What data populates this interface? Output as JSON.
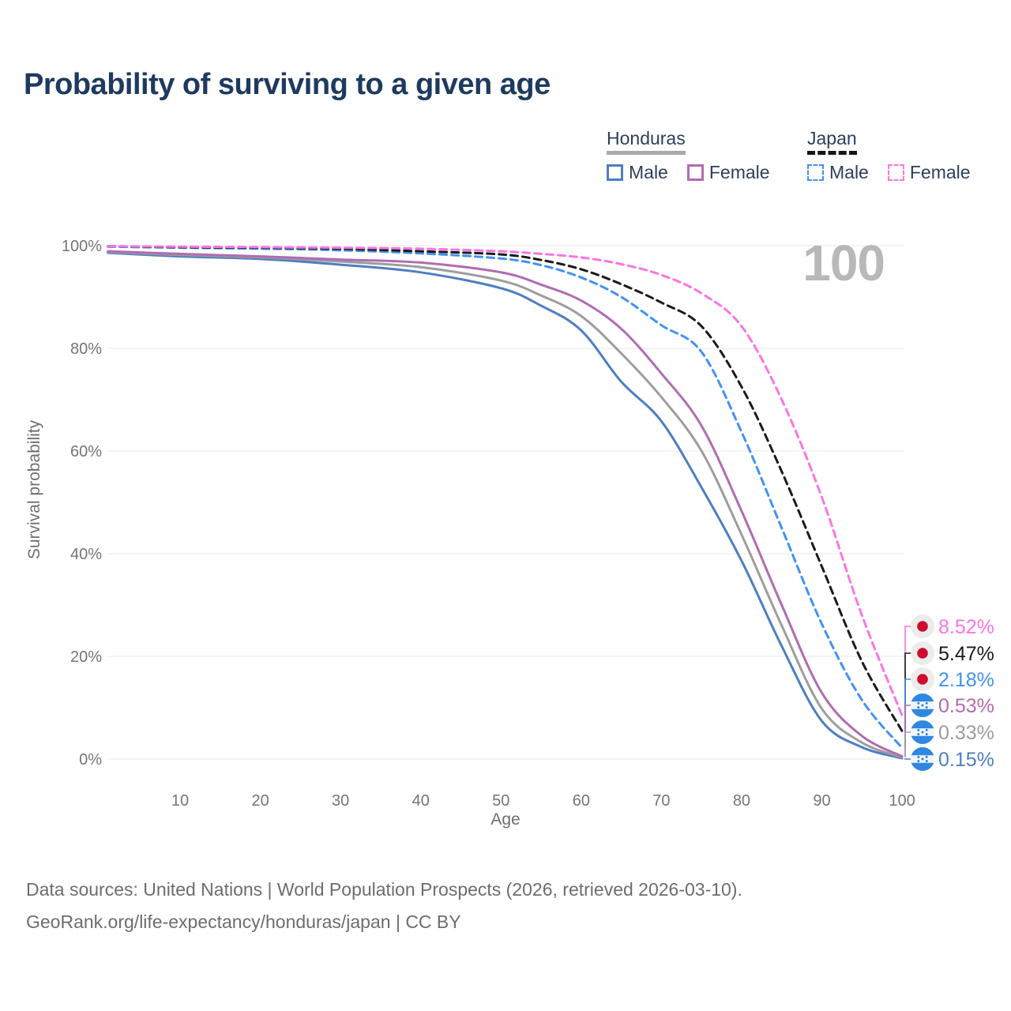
{
  "title": "Probability of surviving to a given age",
  "legend": {
    "honduras": {
      "label": "Honduras",
      "male": "Male",
      "female": "Female"
    },
    "japan": {
      "label": "Japan",
      "male": "Male",
      "female": "Female"
    }
  },
  "axes": {
    "y_title": "Survival probability",
    "x_title": "Age"
  },
  "watermark": {
    "label": "100"
  },
  "footer": {
    "line1": "Data sources: United Nations | World Population Prospects (2026, retrieved 2026-03-10).",
    "line2": "GeoRank.org/life-expectancy/honduras/japan | CC BY"
  },
  "colors": {
    "title_text": "#1e3a5f",
    "legend_text": "#2b3f5c",
    "tick_text": "#757575",
    "gridline": "#e8e8e8",
    "watermark": "#b8b8b8",
    "footer_text": "#6d6d6d",
    "honduras_underline": "#a9a9a9",
    "japan_underline": "#161616",
    "honduras_flag_blue": "#2f87e0",
    "japan_flag_red": "#d0092e",
    "japan_flag_bg": "#ececec"
  },
  "chart_data": {
    "type": "line",
    "title": "Probability of surviving to a given age",
    "xlabel": "Age",
    "ylabel": "Survival probability",
    "xlim": [
      1,
      100
    ],
    "ylim": [
      0,
      100
    ],
    "grid": "horizontal",
    "x_ticks": [
      10,
      20,
      30,
      40,
      50,
      60,
      70,
      80,
      90,
      100
    ],
    "y_ticks": [
      0,
      20,
      40,
      60,
      80,
      100
    ],
    "age_marker": "100",
    "x": [
      1,
      10,
      20,
      30,
      40,
      50,
      55,
      60,
      65,
      70,
      75,
      80,
      85,
      90,
      95,
      100
    ],
    "series": [
      {
        "id": "honduras_male",
        "name": "Honduras Male",
        "line_style": "solid",
        "color": "#4d7ec2",
        "values": [
          98.6,
          97.9,
          97.4,
          96.3,
          94.8,
          91.7,
          88.3,
          83.5,
          73.5,
          65.8,
          52.9,
          38.6,
          22.0,
          7.4,
          2.3,
          0.15
        ]
      },
      {
        "id": "honduras_both",
        "name": "Honduras Both sexes",
        "line_style": "solid",
        "color": "#9d9d9d",
        "values": [
          98.75,
          98.2,
          97.7,
          96.9,
          95.8,
          93.2,
          90.3,
          86.3,
          79.0,
          70.5,
          60.0,
          43.7,
          26.0,
          9.8,
          3.2,
          0.33
        ]
      },
      {
        "id": "honduras_female",
        "name": "Honduras Female",
        "line_style": "solid",
        "color": "#b06cb2",
        "values": [
          98.9,
          98.4,
          97.9,
          97.3,
          96.7,
          94.8,
          92.4,
          89.3,
          83.8,
          75.1,
          64.9,
          48.3,
          30.0,
          12.9,
          4.5,
          0.53
        ]
      },
      {
        "id": "japan_male",
        "name": "Japan Male",
        "line_style": "dashed",
        "color": "#4292f2",
        "values": [
          99.8,
          99.6,
          99.4,
          99.1,
          98.5,
          97.5,
          96.2,
          93.8,
          90.0,
          84.5,
          79.3,
          63.7,
          45.0,
          26.3,
          11.5,
          2.18
        ]
      },
      {
        "id": "japan_both",
        "name": "Japan Both sexes",
        "line_style": "dashed",
        "color": "#1b1b1b",
        "values": [
          99.9,
          99.7,
          99.6,
          99.4,
          98.9,
          98.3,
          97.2,
          95.4,
          92.5,
          88.9,
          84.3,
          72.5,
          56.0,
          37.5,
          19.0,
          5.47
        ]
      },
      {
        "id": "japan_female",
        "name": "Japan Female",
        "line_style": "dashed",
        "color": "#fb75e2",
        "values": [
          99.9,
          99.8,
          99.7,
          99.6,
          99.4,
          98.9,
          98.4,
          97.7,
          96.4,
          94.3,
          90.7,
          84.3,
          70.0,
          51.0,
          28.0,
          8.52
        ]
      }
    ],
    "annotations": [
      {
        "series": "japan_female",
        "label": "8.52%",
        "flag": "japan"
      },
      {
        "series": "japan_both",
        "label": "5.47%",
        "flag": "japan"
      },
      {
        "series": "japan_male",
        "label": "2.18%",
        "flag": "japan"
      },
      {
        "series": "honduras_female",
        "label": "0.53%",
        "flag": "honduras"
      },
      {
        "series": "honduras_both",
        "label": "0.33%",
        "flag": "honduras"
      },
      {
        "series": "honduras_male",
        "label": "0.15%",
        "flag": "honduras"
      }
    ]
  }
}
